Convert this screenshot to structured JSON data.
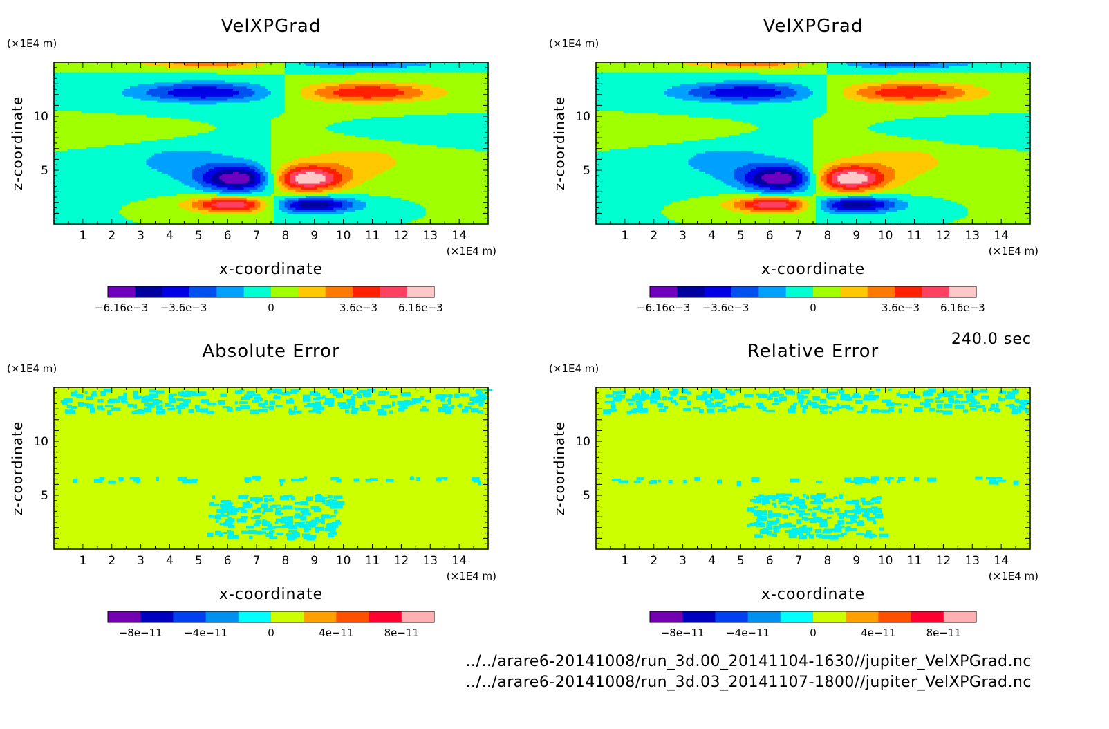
{
  "time_label": "240.0 sec",
  "footer_paths": [
    "../../arare6-20141008/run_3d.00_20141104-1630//jupiter_VelXPGrad.nc",
    "../../arare6-20141008/run_3d.03_20141107-1800//jupiter_VelXPGrad.nc"
  ],
  "chart_data": [
    {
      "type": "heatmap",
      "title": "VelXPGrad",
      "xlabel": "x-coordinate",
      "ylabel": "z-coordinate",
      "x_unit": "(×1E4 m)",
      "y_unit": "(×1E4 m)",
      "xlim": [
        0,
        15
      ],
      "ylim": [
        0,
        15
      ],
      "x_ticks": [
        1,
        2,
        3,
        4,
        5,
        6,
        7,
        8,
        9,
        10,
        11,
        12,
        13,
        14
      ],
      "y_ticks": [
        5,
        10
      ],
      "colorbar": {
        "levels": 12,
        "colors": [
          "#7000c0",
          "#0000a0",
          "#0000e6",
          "#0050f0",
          "#00a0ff",
          "#00ffd0",
          "#a0ff00",
          "#ffc800",
          "#ff7800",
          "#ff2000",
          "#ff4060",
          "#ffc8c8"
        ],
        "tick_labels": [
          "−6.16e−3",
          "−3.6e−3",
          "0",
          "3.6e−3",
          "6.16e−3"
        ],
        "tick_values": [
          -0.00616,
          -0.0036,
          0,
          0.0036,
          0.00616
        ],
        "vmin": -0.00672,
        "vmax": 0.00672
      }
    },
    {
      "type": "heatmap",
      "title": "VelXPGrad",
      "xlabel": "x-coordinate",
      "ylabel": "z-coordinate",
      "x_unit": "(×1E4 m)",
      "y_unit": "(×1E4 m)",
      "xlim": [
        0,
        15
      ],
      "ylim": [
        0,
        15
      ],
      "x_ticks": [
        1,
        2,
        3,
        4,
        5,
        6,
        7,
        8,
        9,
        10,
        11,
        12,
        13,
        14
      ],
      "y_ticks": [
        5,
        10
      ],
      "colorbar": {
        "levels": 12,
        "colors": [
          "#7000c0",
          "#0000a0",
          "#0000e6",
          "#0050f0",
          "#00a0ff",
          "#00ffd0",
          "#a0ff00",
          "#ffc800",
          "#ff7800",
          "#ff2000",
          "#ff4060",
          "#ffc8c8"
        ],
        "tick_labels": [
          "−6.16e−3",
          "−3.6e−3",
          "0",
          "3.6e−3",
          "6.16e−3"
        ],
        "tick_values": [
          -0.00616,
          -0.0036,
          0,
          0.0036,
          0.00616
        ],
        "vmin": -0.00672,
        "vmax": 0.00672
      }
    },
    {
      "type": "heatmap",
      "title": "Absolute Error",
      "xlabel": "x-coordinate",
      "ylabel": "z-coordinate",
      "x_unit": "(×1E4 m)",
      "y_unit": "(×1E4 m)",
      "xlim": [
        0,
        15
      ],
      "ylim": [
        0,
        15
      ],
      "x_ticks": [
        1,
        2,
        3,
        4,
        5,
        6,
        7,
        8,
        9,
        10,
        11,
        12,
        13,
        14
      ],
      "y_ticks": [
        5,
        10
      ],
      "background_color": "#ccff00",
      "speckle_color": "#00f0f0",
      "colorbar": {
        "levels": 10,
        "colors": [
          "#7000b0",
          "#0000c0",
          "#0040f0",
          "#0090f0",
          "#00ffff",
          "#ccff00",
          "#ffa000",
          "#ff5000",
          "#ff0030",
          "#ffb0b0"
        ],
        "tick_labels": [
          "−8e−11",
          "−4e−11",
          "0",
          "4e−11",
          "8e−11"
        ],
        "tick_values": [
          -8e-11,
          -4e-11,
          0,
          4e-11,
          8e-11
        ],
        "vmin": -1e-10,
        "vmax": 1e-10
      }
    },
    {
      "type": "heatmap",
      "title": "Relative Error",
      "xlabel": "x-coordinate",
      "ylabel": "z-coordinate",
      "x_unit": "(×1E4 m)",
      "y_unit": "(×1E4 m)",
      "xlim": [
        0,
        15
      ],
      "ylim": [
        0,
        15
      ],
      "x_ticks": [
        1,
        2,
        3,
        4,
        5,
        6,
        7,
        8,
        9,
        10,
        11,
        12,
        13,
        14
      ],
      "y_ticks": [
        5,
        10
      ],
      "background_color": "#ccff00",
      "speckle_color": "#00f0f0",
      "colorbar": {
        "levels": 10,
        "colors": [
          "#7000b0",
          "#0000c0",
          "#0040f0",
          "#0090f0",
          "#00ffff",
          "#ccff00",
          "#ffa000",
          "#ff5000",
          "#ff0030",
          "#ffb0b0"
        ],
        "tick_labels": [
          "−8e−11",
          "−4e−11",
          "0",
          "4e−11",
          "8e−11"
        ],
        "tick_values": [
          -8e-11,
          -4e-11,
          0,
          4e-11,
          8e-11
        ],
        "vmin": -1e-10,
        "vmax": 1e-10
      }
    }
  ]
}
